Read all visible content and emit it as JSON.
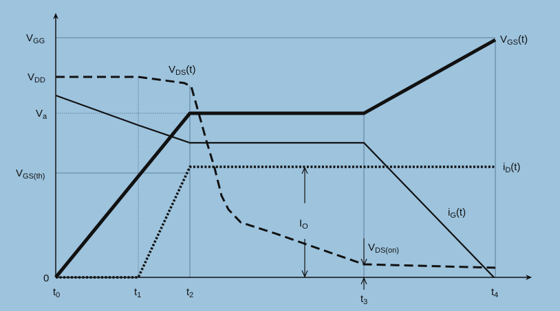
{
  "y_labels": {
    "vgg": {
      "main": "V",
      "sub": "GG"
    },
    "vdd": {
      "main": "V",
      "sub": "DD"
    },
    "va": {
      "main": "V",
      "sub": "a"
    },
    "vgsth": {
      "main": "V",
      "sub": "GS(th)"
    },
    "zero": "0"
  },
  "x_labels": {
    "t0": {
      "main": "t",
      "sub": "0"
    },
    "t1": {
      "main": "t",
      "sub": "1"
    },
    "t2": {
      "main": "t",
      "sub": "2"
    },
    "t3": {
      "main": "t",
      "sub": "3"
    },
    "t4": {
      "main": "t",
      "sub": "4"
    }
  },
  "curve_labels": {
    "vgs": {
      "main": "V",
      "sub": "GS",
      "tail": "(t)"
    },
    "vds": {
      "main": "V",
      "sub": "DS",
      "tail": "(t)"
    },
    "id": {
      "main": "i",
      "sub": "D",
      "tail": "(t)"
    },
    "ig": {
      "main": "i",
      "sub": "G",
      "tail": "(t)"
    },
    "io": {
      "main": "I",
      "sub": "O"
    },
    "vdson": {
      "main": "V",
      "sub": "DS(on)"
    }
  },
  "colors": {
    "background": "#9dc3dd",
    "ink": "#111111"
  }
}
